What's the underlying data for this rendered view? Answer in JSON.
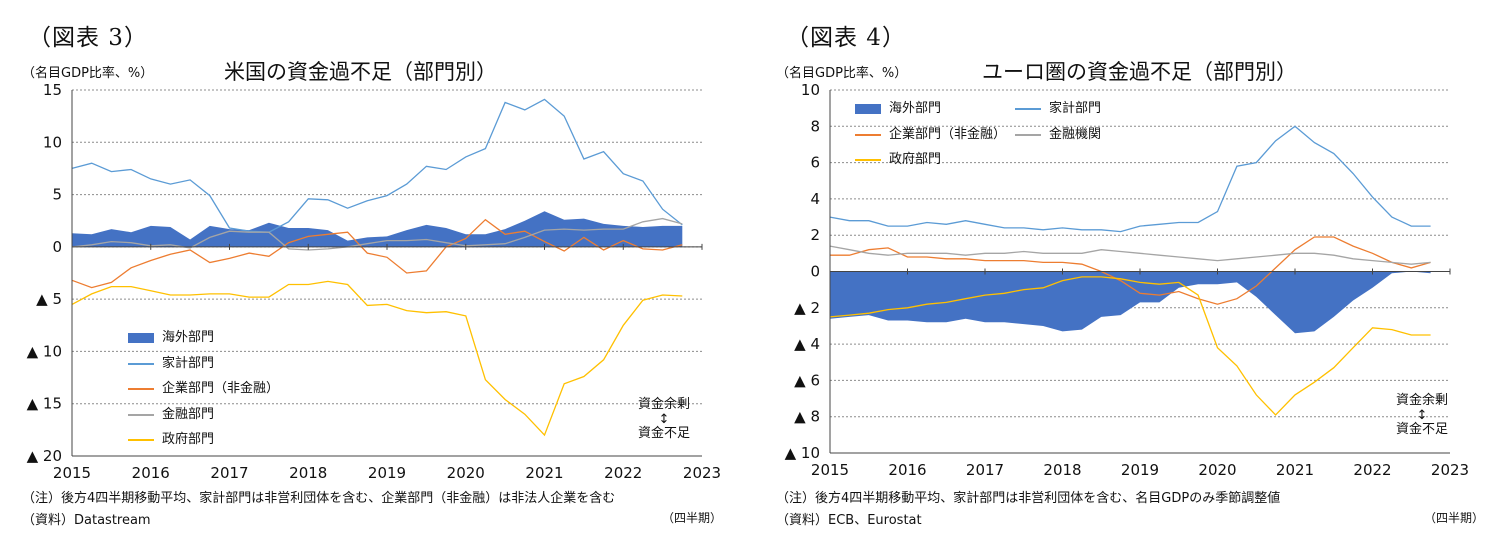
{
  "left": {
    "figure_label": "（図表 3）",
    "unit": "（名目GDP比率、%）",
    "title": "米国の資金過不足（部門別）",
    "note": "（注）後方4四半期移動平均、家計部門は非営利団体を含む、企業部門（非金融）は非法人企業を含む",
    "source": "（資料）Datastream",
    "quarter_label": "（四半期）",
    "annotation_top": "資金余剰",
    "annotation_arrow": "↕",
    "annotation_bottom": "資金不足",
    "legend": [
      "海外部門",
      "家計部門",
      "企業部門（非金融）",
      "金融部門",
      "政府部門"
    ]
  },
  "right": {
    "figure_label": "（図表 4）",
    "unit": "（名目GDP比率、%）",
    "title": "ユーロ圏の資金過不足（部門別）",
    "note": "（注）後方4四半期移動平均、家計部門は非営利団体を含む、名目GDPのみ季節調整値",
    "source": "（資料）ECB、Eurostat",
    "quarter_label": "（四半期）",
    "annotation_top": "資金余剰",
    "annotation_arrow": "↕",
    "annotation_bottom": "資金不足",
    "legend": [
      "海外部門",
      "家計部門",
      "企業部門（非金融）",
      "金融機関",
      "政府部門"
    ]
  },
  "chart_data": [
    {
      "type": "line",
      "title": "米国の資金過不足（部門別）",
      "ylabel": "（名目GDP比率、%）",
      "xlabel": "（四半期）",
      "ylim": [
        -20,
        15
      ],
      "yticks": [
        15,
        10,
        5,
        0,
        -5,
        -10,
        -15,
        -20
      ],
      "ytick_labels": [
        "15",
        "10",
        "5",
        "0",
        "▲ 5",
        "▲ 10",
        "▲ 15",
        "▲ 20"
      ],
      "xlim": [
        2015,
        2023
      ],
      "xticks": [
        "2015",
        "2016",
        "2017",
        "2018",
        "2019",
        "2020",
        "2021",
        "2022",
        "2023"
      ],
      "x_start": 2015,
      "x_step": 0.25,
      "colors": {
        "海外部門": "#4472c4",
        "家計部門": "#5b9bd5",
        "企業部門（非金融）": "#ed7d31",
        "金融部門": "#a5a5a5",
        "政府部門": "#ffc000"
      },
      "series": [
        {
          "name": "海外部門",
          "style": "area",
          "values": [
            1.3,
            1.2,
            1.7,
            1.4,
            2.0,
            1.9,
            0.7,
            2.0,
            1.7,
            1.6,
            2.3,
            1.8,
            1.8,
            1.6,
            0.6,
            0.9,
            1.0,
            1.6,
            2.1,
            1.8,
            1.2,
            1.2,
            1.7,
            2.5,
            3.4,
            2.6,
            2.7,
            2.2,
            2.0,
            1.9,
            2.0,
            2.0
          ]
        },
        {
          "name": "家計部門",
          "style": "line",
          "values": [
            7.5,
            8.0,
            7.2,
            7.4,
            6.5,
            6.0,
            6.4,
            4.9,
            1.8,
            1.5,
            1.4,
            2.4,
            4.6,
            4.5,
            3.7,
            4.4,
            4.9,
            6.0,
            7.7,
            7.4,
            8.6,
            9.4,
            13.8,
            13.1,
            14.1,
            12.5,
            8.4,
            9.1,
            7.0,
            6.3,
            3.6,
            2.1
          ]
        },
        {
          "name": "企業部門（非金融）",
          "style": "line",
          "values": [
            -3.2,
            -3.9,
            -3.4,
            -2.0,
            -1.3,
            -0.7,
            -0.3,
            -1.5,
            -1.1,
            -0.6,
            -0.9,
            0.4,
            1.0,
            1.2,
            1.4,
            -0.6,
            -1.0,
            -2.5,
            -2.3,
            0.0,
            0.8,
            2.6,
            1.2,
            1.5,
            0.5,
            -0.4,
            0.9,
            -0.3,
            0.6,
            -0.2,
            -0.3,
            0.2
          ]
        },
        {
          "name": "金融部門",
          "style": "line",
          "values": [
            0.0,
            0.2,
            0.5,
            0.4,
            0.1,
            0.2,
            -0.1,
            0.9,
            1.5,
            1.4,
            1.4,
            -0.2,
            -0.3,
            -0.2,
            0.0,
            0.3,
            0.6,
            0.6,
            0.7,
            0.4,
            0.1,
            0.2,
            0.3,
            0.9,
            1.6,
            1.7,
            1.6,
            1.7,
            1.7,
            2.4,
            2.7,
            2.2
          ]
        },
        {
          "name": "政府部門",
          "style": "line",
          "values": [
            -5.5,
            -4.5,
            -3.8,
            -3.8,
            -4.2,
            -4.6,
            -4.6,
            -4.5,
            -4.5,
            -4.8,
            -4.8,
            -3.6,
            -3.6,
            -3.3,
            -3.6,
            -5.6,
            -5.5,
            -6.1,
            -6.3,
            -6.2,
            -6.6,
            -12.7,
            -14.6,
            -16.0,
            -18.0,
            -13.1,
            -12.4,
            -10.8,
            -7.5,
            -5.1,
            -4.6,
            -4.7
          ]
        }
      ],
      "annotations": [
        "資金余剰",
        "↕",
        "資金不足"
      ]
    },
    {
      "type": "line",
      "title": "ユーロ圏の資金過不足（部門別）",
      "ylabel": "（名目GDP比率、%）",
      "xlabel": "（四半期）",
      "ylim": [
        -10,
        10
      ],
      "yticks": [
        10,
        8,
        6,
        4,
        2,
        0,
        -2,
        -4,
        -6,
        -8,
        -10
      ],
      "ytick_labels": [
        "10",
        "8",
        "6",
        "4",
        "2",
        "0",
        "▲ 2",
        "▲ 4",
        "▲ 6",
        "▲ 8",
        "▲ 10"
      ],
      "xlim": [
        2015,
        2023
      ],
      "xticks": [
        "2015",
        "2016",
        "2017",
        "2018",
        "2019",
        "2020",
        "2021",
        "2022",
        "2023"
      ],
      "x_start": 2015,
      "x_step": 0.25,
      "colors": {
        "海外部門": "#4472c4",
        "家計部門": "#5b9bd5",
        "企業部門（非金融）": "#ed7d31",
        "金融機関": "#a5a5a5",
        "政府部門": "#ffc000"
      },
      "series": [
        {
          "name": "海外部門",
          "style": "area",
          "values": [
            -2.6,
            -2.5,
            -2.4,
            -2.7,
            -2.7,
            -2.8,
            -2.8,
            -2.6,
            -2.8,
            -2.8,
            -2.9,
            -3.0,
            -3.3,
            -3.2,
            -2.5,
            -2.4,
            -1.7,
            -1.7,
            -0.9,
            -0.7,
            -0.7,
            -0.6,
            -1.4,
            -2.4,
            -3.4,
            -3.3,
            -2.5,
            -1.6,
            -0.9,
            -0.1,
            0.0,
            -0.1
          ]
        },
        {
          "name": "家計部門",
          "style": "line",
          "values": [
            3.0,
            2.8,
            2.8,
            2.5,
            2.5,
            2.7,
            2.6,
            2.8,
            2.6,
            2.4,
            2.4,
            2.3,
            2.4,
            2.3,
            2.3,
            2.2,
            2.5,
            2.6,
            2.7,
            2.7,
            3.3,
            5.8,
            6.0,
            7.2,
            8.0,
            7.1,
            6.5,
            5.4,
            4.1,
            3.0,
            2.5,
            2.5
          ]
        },
        {
          "name": "企業部門（非金融）",
          "style": "line",
          "values": [
            0.9,
            0.9,
            1.2,
            1.3,
            0.8,
            0.8,
            0.7,
            0.7,
            0.6,
            0.6,
            0.6,
            0.5,
            0.5,
            0.4,
            0.0,
            -0.5,
            -1.2,
            -1.3,
            -1.1,
            -1.5,
            -1.8,
            -1.5,
            -0.8,
            0.2,
            1.2,
            1.9,
            1.9,
            1.4,
            1.0,
            0.5,
            0.2,
            0.5
          ]
        },
        {
          "name": "金融機関",
          "style": "line",
          "values": [
            1.4,
            1.2,
            1.0,
            0.9,
            1.0,
            1.0,
            1.0,
            0.9,
            1.0,
            1.0,
            1.1,
            1.0,
            1.0,
            1.0,
            1.2,
            1.1,
            1.0,
            0.9,
            0.8,
            0.7,
            0.6,
            0.7,
            0.8,
            0.9,
            1.0,
            1.0,
            0.9,
            0.7,
            0.6,
            0.5,
            0.4,
            0.5
          ]
        },
        {
          "name": "政府部門",
          "style": "line",
          "values": [
            -2.5,
            -2.4,
            -2.3,
            -2.1,
            -2.0,
            -1.8,
            -1.7,
            -1.5,
            -1.3,
            -1.2,
            -1.0,
            -0.9,
            -0.5,
            -0.3,
            -0.3,
            -0.4,
            -0.6,
            -0.7,
            -0.6,
            -1.3,
            -4.2,
            -5.2,
            -6.8,
            -7.9,
            -6.8,
            -6.1,
            -5.3,
            -4.2,
            -3.1,
            -3.2,
            -3.5,
            -3.5
          ]
        }
      ],
      "annotations": [
        "資金余剰",
        "↕",
        "資金不足"
      ]
    }
  ]
}
